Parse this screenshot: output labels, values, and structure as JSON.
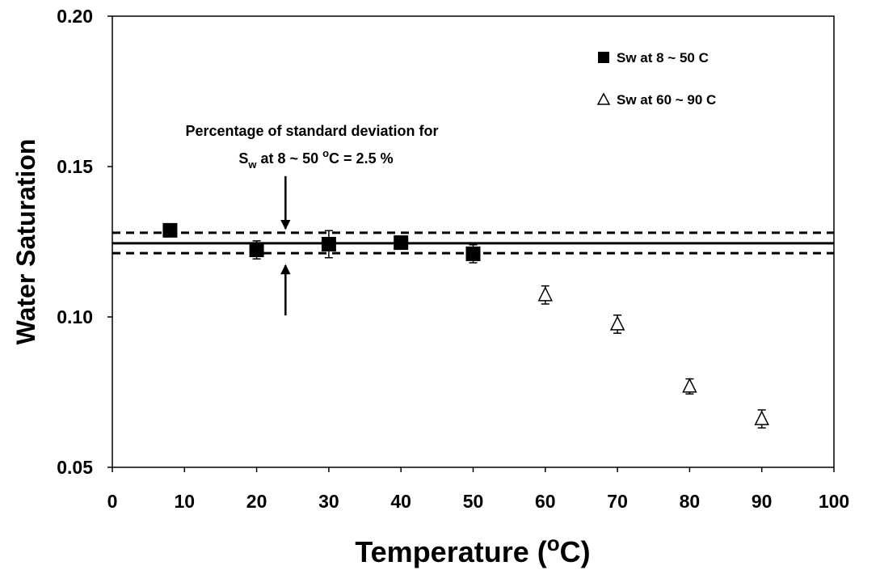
{
  "chart_data": {
    "type": "scatter",
    "xlabel": {
      "text": "Temperature (",
      "sup": "o",
      "after": "C)"
    },
    "ylabel": "Water Saturation",
    "xlim": [
      0,
      100
    ],
    "xticks": [
      0,
      10,
      20,
      30,
      40,
      50,
      60,
      70,
      80,
      90,
      100
    ],
    "ylim": [
      0.05,
      0.2
    ],
    "yticks": [
      {
        "value": 0.05,
        "label": "0.05"
      },
      {
        "value": 0.1,
        "label": "0.10"
      },
      {
        "value": 0.15,
        "label": "0.15"
      },
      {
        "value": 0.2,
        "label": "0.20"
      }
    ],
    "legend_position": "upper right",
    "series": [
      {
        "name": "Sw at 8 ~ 50 C",
        "marker": "square",
        "color": "#000000",
        "x": [
          8,
          20,
          30,
          40,
          50
        ],
        "values": [
          0.1288,
          0.1223,
          0.1242,
          0.1247,
          0.121
        ],
        "error": [
          null,
          0.003,
          0.0045,
          0.002,
          0.003
        ]
      },
      {
        "name": "Sw at 60 ~ 90 C",
        "marker": "triangle-open",
        "color": "#000000",
        "x": [
          60,
          70,
          80,
          90
        ],
        "values": [
          0.1073,
          0.0976,
          0.0769,
          0.0661
        ],
        "error": [
          0.003,
          0.003,
          0.0025,
          0.003
        ]
      }
    ],
    "reference_lines": [
      {
        "value": 0.1245,
        "style": "solid"
      },
      {
        "value": 0.128,
        "style": "dashed"
      },
      {
        "value": 0.1212,
        "style": "dashed"
      }
    ],
    "arrows": [
      {
        "x": 24,
        "from": 0.1468,
        "to": 0.1293
      },
      {
        "x": 24,
        "from": 0.1005,
        "to": 0.1172
      }
    ],
    "annotation": {
      "line1": "Percentage of standard deviation for",
      "line2": {
        "s": "S",
        "sub": "w",
        "mid": " at 8 ~ 50 ",
        "sup": "o",
        "end": "C = 2.5 %"
      }
    }
  }
}
